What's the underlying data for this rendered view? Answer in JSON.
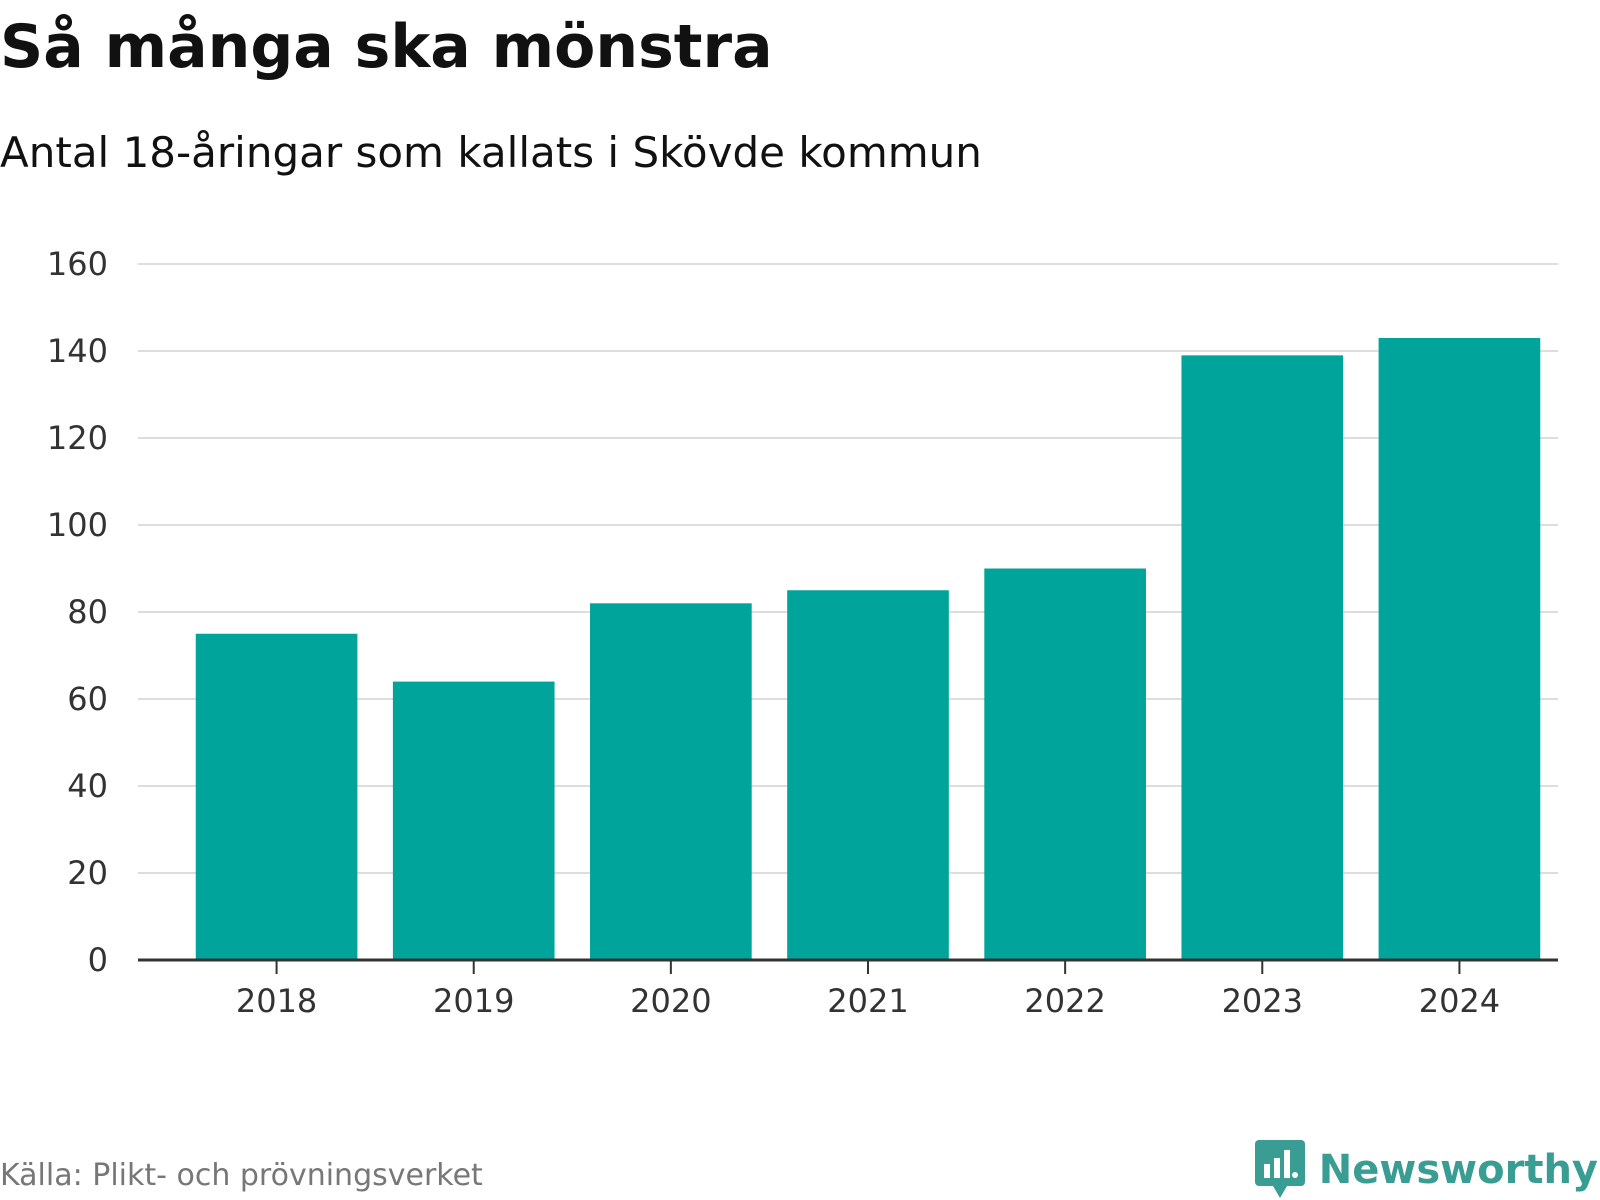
{
  "colors": {
    "bar": "#00A49A",
    "grid": "#dddddd",
    "axis": "#333333",
    "text": "#111111",
    "source": "#777777",
    "brand": "#3a9d93"
  },
  "footer": {
    "source": "Källa: Plikt- och prövningsverket",
    "brand": "Newsworthy",
    "brand_icon": "newsworthy-logo-icon"
  },
  "chart_data": {
    "type": "bar",
    "title": "Så många ska mönstra",
    "subtitle": "Antal 18-åringar som kallats i Skövde kommun",
    "categories": [
      "2018",
      "2019",
      "2020",
      "2021",
      "2022",
      "2023",
      "2024"
    ],
    "values": [
      75,
      64,
      82,
      85,
      90,
      139,
      143
    ],
    "xlabel": "",
    "ylabel": "",
    "ylim": [
      0,
      160
    ],
    "yticks": [
      0,
      20,
      40,
      60,
      80,
      100,
      120,
      140,
      160
    ],
    "grid": true,
    "legend": "none"
  }
}
